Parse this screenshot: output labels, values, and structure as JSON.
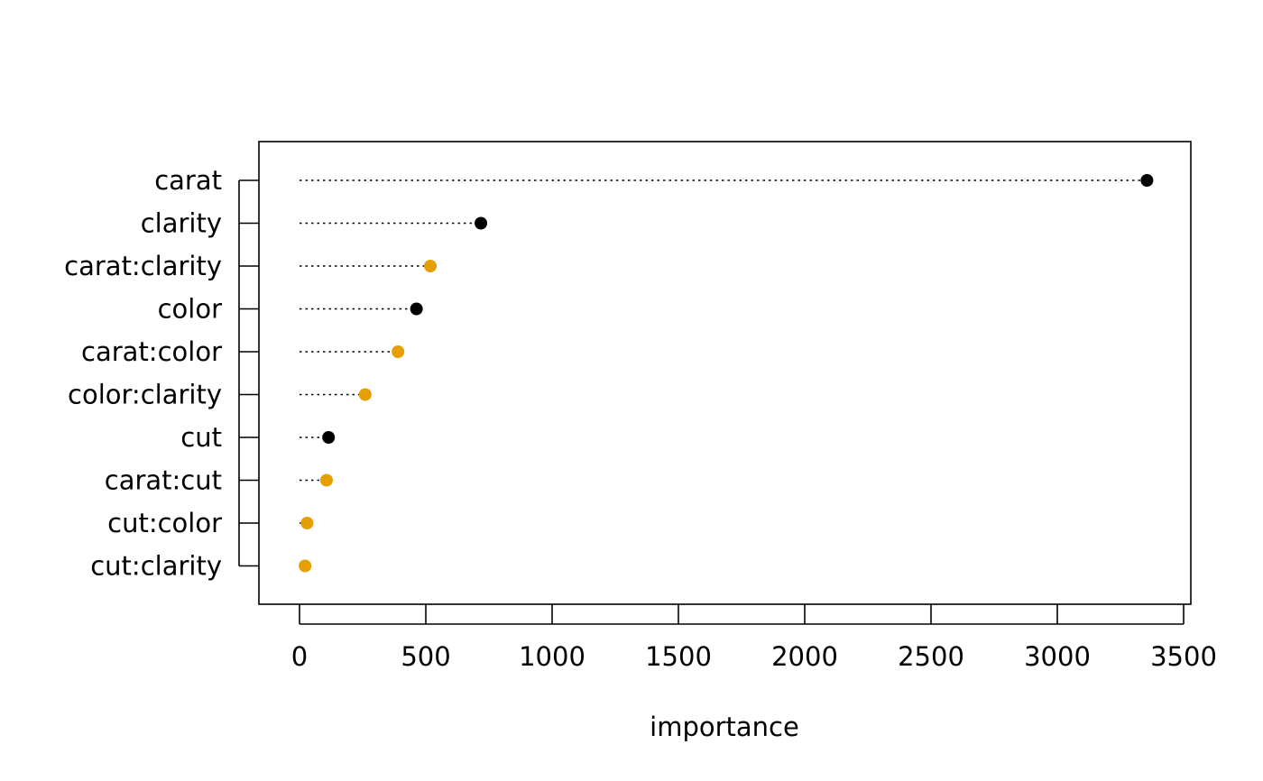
{
  "chart_data": {
    "type": "scatter",
    "variant": "dotchart",
    "title": "",
    "xlabel": "importance",
    "ylabel": "",
    "xlim": [
      -165,
      3525
    ],
    "xticks": [
      0,
      500,
      1000,
      1500,
      2000,
      2500,
      3000,
      3500
    ],
    "xtick_labels": [
      "0",
      "500",
      "1000",
      "1500",
      "2000",
      "2500",
      "3000",
      "3500"
    ],
    "categories": [
      "carat",
      "clarity",
      "carat:clarity",
      "color",
      "carat:color",
      "color:clarity",
      "cut",
      "carat:cut",
      "cut:color",
      "cut:clarity"
    ],
    "values": [
      3355,
      718,
      518,
      463,
      390,
      260,
      115,
      107,
      30,
      22
    ],
    "point_colors": [
      "#000000",
      "#000000",
      "#E69F00",
      "#000000",
      "#E69F00",
      "#E69F00",
      "#000000",
      "#E69F00",
      "#E69F00",
      "#E69F00"
    ],
    "colors": {
      "main_effect": "#000000",
      "interaction": "#E69F00"
    },
    "grid": false,
    "legend": "none",
    "leader_lines": "dotted from 0"
  }
}
